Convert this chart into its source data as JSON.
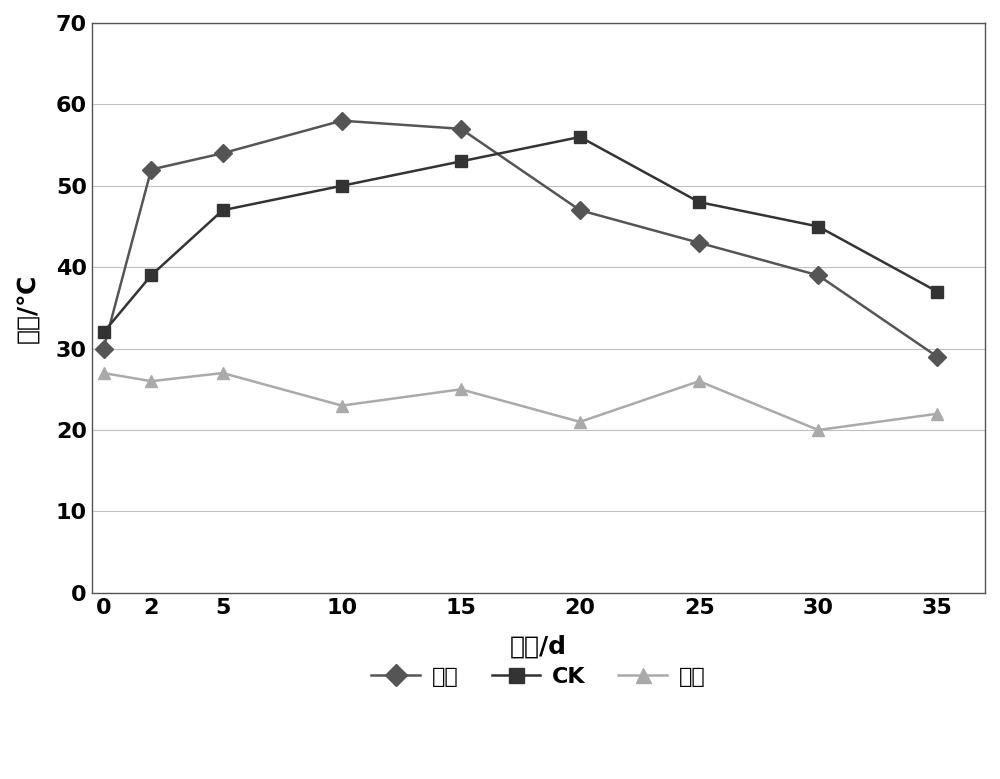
{
  "x": [
    0,
    2,
    5,
    10,
    15,
    20,
    25,
    30,
    35
  ],
  "jiezhong": [
    30,
    52,
    54,
    58,
    57,
    47,
    43,
    39,
    29
  ],
  "CK": [
    32,
    39,
    47,
    50,
    53,
    56,
    48,
    45,
    37
  ],
  "huanjing": [
    27,
    26,
    27,
    23,
    25,
    21,
    26,
    20,
    22
  ],
  "xlabel": "时间/d",
  "ylabel": "温度/℃",
  "ylim": [
    0,
    70
  ],
  "yticks": [
    0,
    10,
    20,
    30,
    40,
    50,
    60,
    70
  ],
  "legend_jiezhong": "接种",
  "legend_CK": "CK",
  "legend_huanjing": "环境",
  "line_color_jiezhong": "#555555",
  "line_color_CK": "#333333",
  "line_color_huanjing": "#aaaaaa",
  "background_color": "#ffffff",
  "grid_color": "#c0c0c0"
}
